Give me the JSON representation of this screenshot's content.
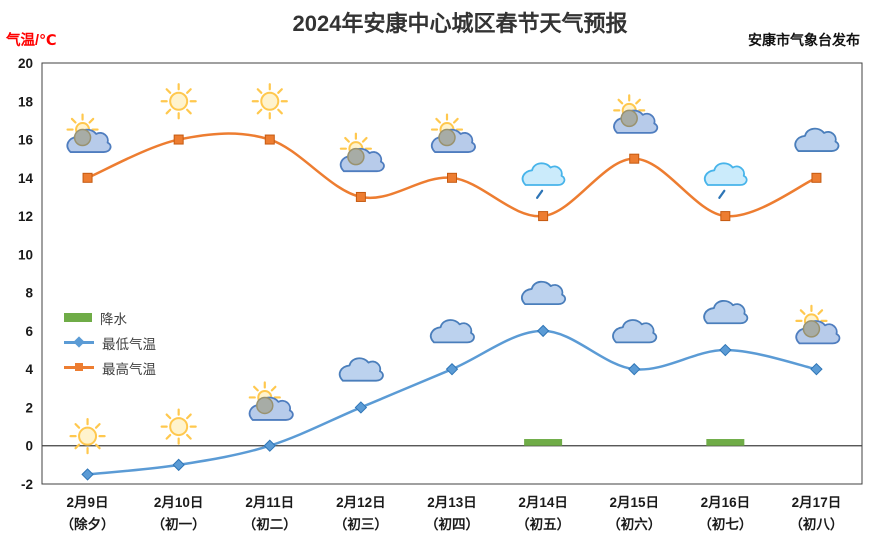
{
  "header": {
    "title": "2024年安康中心城区春节天气预报",
    "publisher": "安康市气象台发布",
    "y_axis_label": "气温/℃"
  },
  "legend": [
    {
      "key": "precipitation",
      "label": "降水",
      "type": "bar",
      "color": "#6FAC47"
    },
    {
      "key": "min-temp",
      "label": "最低气温",
      "type": "line-diamond",
      "color": "#5B9BD5"
    },
    {
      "key": "max-temp",
      "label": "最高气温",
      "type": "line-square",
      "color": "#ED7D31"
    }
  ],
  "colors": {
    "max_temp": "#ED7D31",
    "min_temp": "#5B9BD5",
    "precipitation": "#6FAC47",
    "axis_label_red": "#FF0000",
    "text": "#1A1A1A",
    "border": "#404040"
  },
  "chart_data": {
    "type": "line",
    "title": "2024年安康中心城区春节天气预报",
    "ylabel": "气温/℃",
    "source_label": "安康市气象台发布",
    "categories": [
      {
        "date": "2月9日",
        "festival": "（除夕）"
      },
      {
        "date": "2月10日",
        "festival": "（初一）"
      },
      {
        "date": "2月11日",
        "festival": "（初二）"
      },
      {
        "date": "2月12日",
        "festival": "（初三）"
      },
      {
        "date": "2月13日",
        "festival": "（初四）"
      },
      {
        "date": "2月14日",
        "festival": "（初五）"
      },
      {
        "date": "2月15日",
        "festival": "（初六）"
      },
      {
        "date": "2月16日",
        "festival": "（初七）"
      },
      {
        "date": "2月17日",
        "festival": "（初八）"
      }
    ],
    "series": [
      {
        "key": "max-temp",
        "name": "最高气温",
        "color": "#ED7D31",
        "marker": "square",
        "marker_stroke": "#C55A11",
        "values": [
          14,
          16,
          16,
          13,
          14,
          12,
          15,
          12,
          14
        ]
      },
      {
        "key": "min-temp",
        "name": "最低气温",
        "color": "#5B9BD5",
        "marker": "diamond",
        "marker_stroke": "#2E75B6",
        "values": [
          -1.5,
          -1,
          0,
          2,
          4,
          6,
          4,
          5,
          4
        ]
      }
    ],
    "precipitation": {
      "key": "precipitation",
      "name": "降水",
      "color": "#6FAC47",
      "values": [
        0,
        0,
        0,
        0,
        0,
        0.35,
        0,
        0.35,
        0
      ]
    },
    "day_icons": [
      "partly-cloudy",
      "sunny",
      "sunny",
      "partly-cloudy",
      "partly-cloudy",
      "light-rain",
      "partly-cloudy",
      "light-rain",
      "cloudy"
    ],
    "night_icons": [
      "sunny",
      "sunny",
      "partly-cloudy",
      "cloudy",
      "cloudy",
      "cloudy",
      "cloudy",
      "cloudy",
      "partly-cloudy"
    ],
    "ylim": [
      -2,
      20
    ],
    "ytick_step": 2,
    "grid": false,
    "legend_position": "left-middle"
  }
}
